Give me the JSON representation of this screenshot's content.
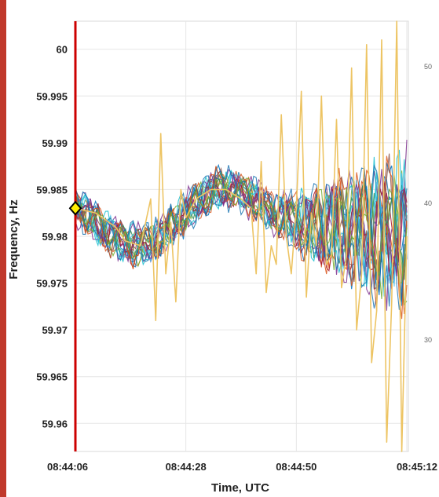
{
  "chart_data": {
    "type": "line",
    "title": "",
    "xlabel": "Time, UTC",
    "ylabel": "Frequency, Hz",
    "x_ticks": [
      "08:44:06",
      "08:44:28",
      "08:44:50",
      "08:45:12"
    ],
    "x_tick_seconds": [
      0,
      22,
      44,
      66
    ],
    "y_ticks": [
      59.96,
      59.965,
      59.97,
      59.975,
      59.98,
      59.985,
      59.99,
      59.995,
      60
    ],
    "ylim": [
      59.957,
      60.003
    ],
    "xlim": [
      0,
      66
    ],
    "grid": true,
    "marker": {
      "x": 0,
      "y": 59.983,
      "shape": "diamond"
    },
    "side_labels": [
      "50",
      "40",
      "30"
    ],
    "colors": [
      "#1f77b4",
      "#d95319",
      "#7e2f8e",
      "#77ac30",
      "#4dbeee",
      "#a2142f",
      "#2e8b57",
      "#0072bd",
      "#8c564b",
      "#17becf"
    ],
    "highlight_color": "#edc463",
    "border_color": "#c0392b",
    "series": [
      {
        "name": "",
        "x": [
          0,
          3,
          6,
          9,
          12,
          15,
          17,
          20,
          22,
          25,
          28,
          30,
          33,
          36,
          39,
          41,
          44,
          47,
          50,
          53,
          56,
          59,
          62,
          64,
          66
        ],
        "y": [
          59.9835,
          59.982,
          59.9805,
          59.9795,
          59.979,
          59.9792,
          59.98,
          59.9815,
          59.9825,
          59.984,
          59.985,
          59.9852,
          59.9848,
          59.9838,
          59.9825,
          59.9822,
          59.9815,
          59.981,
          59.9812,
          59.981,
          59.9808,
          59.9806,
          59.9805,
          59.9806,
          59.9805
        ]
      },
      {
        "name": "",
        "x": [
          0,
          4,
          8,
          10,
          13,
          15,
          16,
          17,
          18,
          19,
          20,
          21,
          22,
          24,
          27,
          30,
          33,
          35,
          36,
          37,
          38,
          39,
          40,
          41,
          42,
          43,
          44,
          45,
          46,
          47,
          48,
          49,
          50,
          51,
          52,
          53,
          54,
          55,
          56,
          57,
          58,
          59,
          60,
          61,
          62,
          63,
          64,
          65,
          66
        ],
        "y": [
          59.983,
          59.9825,
          59.981,
          59.9795,
          59.979,
          59.984,
          59.971,
          59.991,
          59.976,
          59.9815,
          59.973,
          59.985,
          59.982,
          59.984,
          59.985,
          59.985,
          59.984,
          59.983,
          59.976,
          59.988,
          59.974,
          59.979,
          59.977,
          59.993,
          59.98,
          59.976,
          59.983,
          59.9955,
          59.9735,
          59.9825,
          59.979,
          59.995,
          59.977,
          59.978,
          59.9925,
          59.9745,
          59.978,
          59.998,
          59.97,
          59.976,
          60.0005,
          59.9665,
          59.972,
          60.001,
          59.958,
          59.973,
          60.003,
          59.957,
          59.98
        ]
      }
    ]
  }
}
